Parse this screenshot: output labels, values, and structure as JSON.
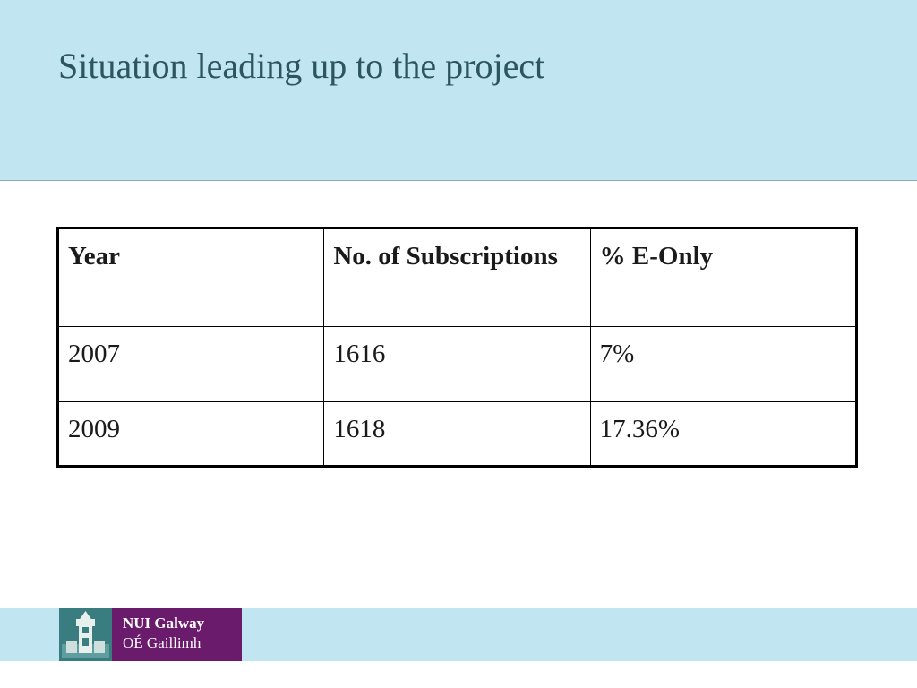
{
  "slide": {
    "title": "Situation leading up to the project"
  },
  "table": {
    "headers": [
      "Year",
      "No. of Subscriptions",
      "% E-Only"
    ],
    "rows": [
      [
        "2007",
        "1616",
        "7%"
      ],
      [
        "2009",
        "1618",
        "17.36%"
      ]
    ]
  },
  "logo": {
    "line1": "NUI Galway",
    "line2": "OÉ Gaillimh"
  },
  "colors": {
    "band": "#c2e6f1",
    "title": "#2b5660",
    "logo_purple": "#6b1b6b",
    "logo_teal": "#3a7d80"
  },
  "icons": {
    "emblem": "university-tower-icon"
  }
}
